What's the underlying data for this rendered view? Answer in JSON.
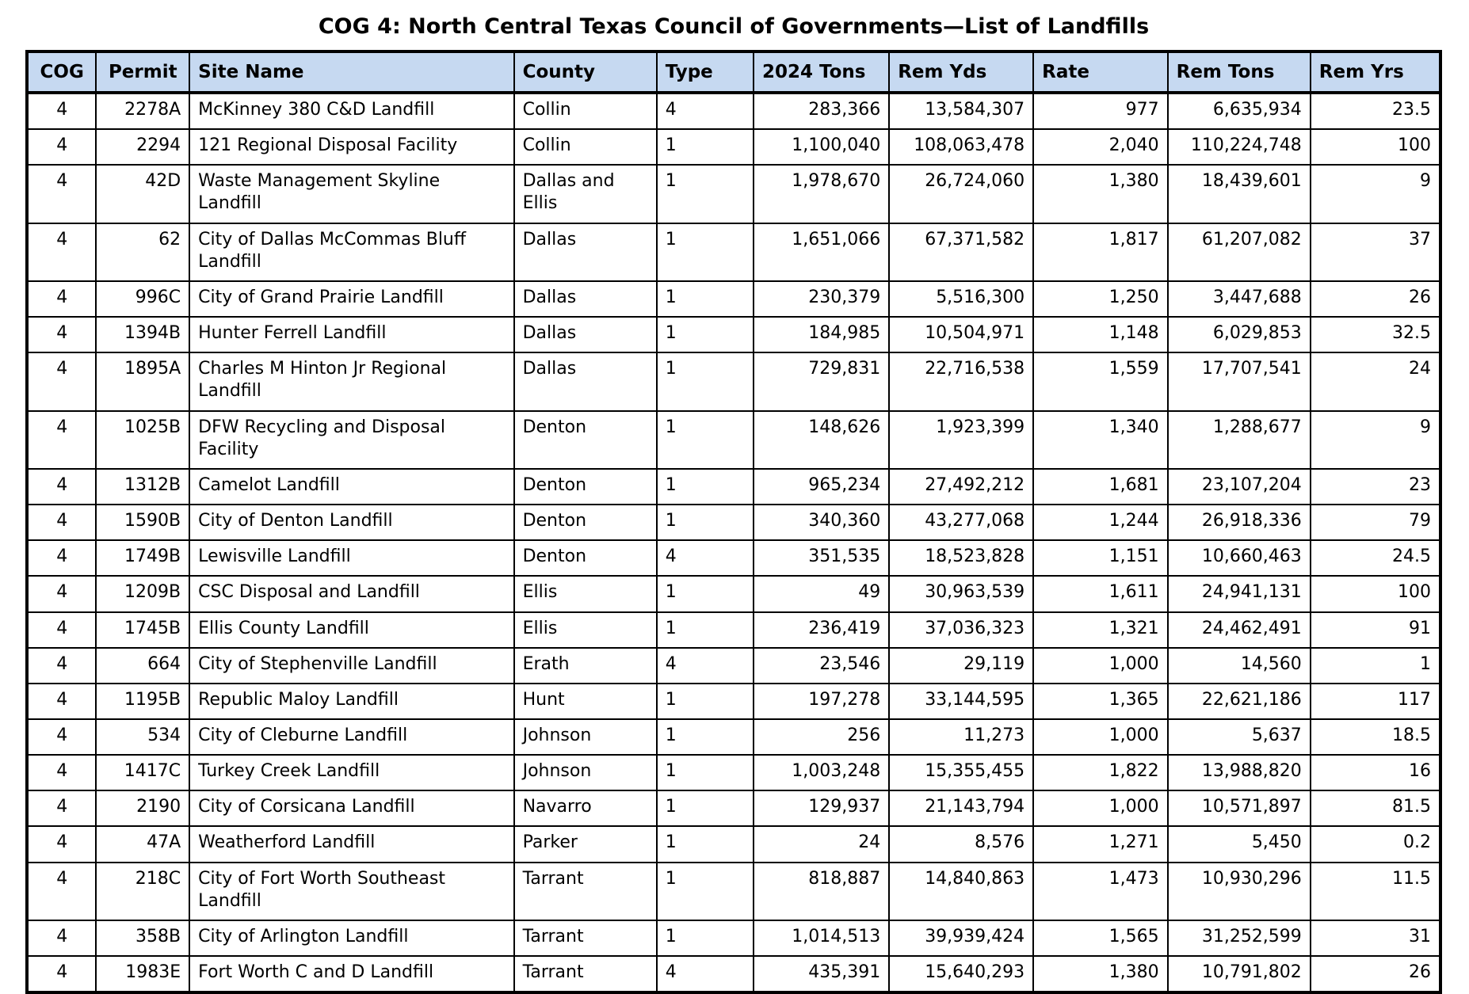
{
  "page": {
    "title": "COG 4: North Central Texas Council of Governments—List of Landfills"
  },
  "colors": {
    "header_bg": "#c6d9f1",
    "border": "#000000",
    "text": "#000000",
    "page_bg": "#ffffff"
  },
  "table": {
    "columns": [
      {
        "key": "cog",
        "label": "COG"
      },
      {
        "key": "permit",
        "label": "Permit"
      },
      {
        "key": "site_name",
        "label": "Site Name"
      },
      {
        "key": "county",
        "label": "County"
      },
      {
        "key": "type",
        "label": "Type"
      },
      {
        "key": "tons_2024",
        "label": "2024 Tons"
      },
      {
        "key": "rem_yds",
        "label": "Rem Yds"
      },
      {
        "key": "rate",
        "label": "Rate"
      },
      {
        "key": "rem_tons",
        "label": "Rem Tons"
      },
      {
        "key": "rem_yrs",
        "label": "Rem Yrs"
      }
    ],
    "rows": [
      {
        "cog": "4",
        "permit": "2278A",
        "site_name": "McKinney 380 C&D Landfill",
        "county": "Collin",
        "type": "4",
        "tons_2024": "283,366",
        "rem_yds": "13,584,307",
        "rate": "977",
        "rem_tons": "6,635,934",
        "rem_yrs": "23.5"
      },
      {
        "cog": "4",
        "permit": "2294",
        "site_name": "121 Regional Disposal Facility",
        "county": "Collin",
        "type": "1",
        "tons_2024": "1,100,040",
        "rem_yds": "108,063,478",
        "rate": "2,040",
        "rem_tons": "110,224,748",
        "rem_yrs": "100"
      },
      {
        "cog": "4",
        "permit": "42D",
        "site_name": "Waste Management Skyline Landfill",
        "county": "Dallas and Ellis",
        "type": "1",
        "tons_2024": "1,978,670",
        "rem_yds": "26,724,060",
        "rate": "1,380",
        "rem_tons": "18,439,601",
        "rem_yrs": "9"
      },
      {
        "cog": "4",
        "permit": "62",
        "site_name": "City of Dallas McCommas Bluff Landfill",
        "county": "Dallas",
        "type": "1",
        "tons_2024": "1,651,066",
        "rem_yds": "67,371,582",
        "rate": "1,817",
        "rem_tons": "61,207,082",
        "rem_yrs": "37"
      },
      {
        "cog": "4",
        "permit": "996C",
        "site_name": "City of Grand Prairie Landfill",
        "county": "Dallas",
        "type": "1",
        "tons_2024": "230,379",
        "rem_yds": "5,516,300",
        "rate": "1,250",
        "rem_tons": "3,447,688",
        "rem_yrs": "26"
      },
      {
        "cog": "4",
        "permit": "1394B",
        "site_name": "Hunter Ferrell Landfill",
        "county": "Dallas",
        "type": "1",
        "tons_2024": "184,985",
        "rem_yds": "10,504,971",
        "rate": "1,148",
        "rem_tons": "6,029,853",
        "rem_yrs": "32.5"
      },
      {
        "cog": "4",
        "permit": "1895A",
        "site_name": "Charles M Hinton Jr Regional Landfill",
        "county": "Dallas",
        "type": "1",
        "tons_2024": "729,831",
        "rem_yds": "22,716,538",
        "rate": "1,559",
        "rem_tons": "17,707,541",
        "rem_yrs": "24"
      },
      {
        "cog": "4",
        "permit": "1025B",
        "site_name": "DFW Recycling and Disposal Facility",
        "county": "Denton",
        "type": "1",
        "tons_2024": "148,626",
        "rem_yds": "1,923,399",
        "rate": "1,340",
        "rem_tons": "1,288,677",
        "rem_yrs": "9"
      },
      {
        "cog": "4",
        "permit": "1312B",
        "site_name": "Camelot Landfill",
        "county": "Denton",
        "type": "1",
        "tons_2024": "965,234",
        "rem_yds": "27,492,212",
        "rate": "1,681",
        "rem_tons": "23,107,204",
        "rem_yrs": "23"
      },
      {
        "cog": "4",
        "permit": "1590B",
        "site_name": "City of Denton Landfill",
        "county": "Denton",
        "type": "1",
        "tons_2024": "340,360",
        "rem_yds": "43,277,068",
        "rate": "1,244",
        "rem_tons": "26,918,336",
        "rem_yrs": "79"
      },
      {
        "cog": "4",
        "permit": "1749B",
        "site_name": "Lewisville Landfill",
        "county": "Denton",
        "type": "4",
        "tons_2024": "351,535",
        "rem_yds": "18,523,828",
        "rate": "1,151",
        "rem_tons": "10,660,463",
        "rem_yrs": "24.5"
      },
      {
        "cog": "4",
        "permit": "1209B",
        "site_name": "CSC Disposal and Landfill",
        "county": "Ellis",
        "type": "1",
        "tons_2024": "49",
        "rem_yds": "30,963,539",
        "rate": "1,611",
        "rem_tons": "24,941,131",
        "rem_yrs": "100"
      },
      {
        "cog": "4",
        "permit": "1745B",
        "site_name": "Ellis County Landfill",
        "county": "Ellis",
        "type": "1",
        "tons_2024": "236,419",
        "rem_yds": "37,036,323",
        "rate": "1,321",
        "rem_tons": "24,462,491",
        "rem_yrs": "91"
      },
      {
        "cog": "4",
        "permit": "664",
        "site_name": "City of Stephenville Landfill",
        "county": "Erath",
        "type": "4",
        "tons_2024": "23,546",
        "rem_yds": "29,119",
        "rate": "1,000",
        "rem_tons": "14,560",
        "rem_yrs": "1"
      },
      {
        "cog": "4",
        "permit": "1195B",
        "site_name": "Republic Maloy Landfill",
        "county": "Hunt",
        "type": "1",
        "tons_2024": "197,278",
        "rem_yds": "33,144,595",
        "rate": "1,365",
        "rem_tons": "22,621,186",
        "rem_yrs": "117"
      },
      {
        "cog": "4",
        "permit": "534",
        "site_name": "City of Cleburne Landfill",
        "county": "Johnson",
        "type": "1",
        "tons_2024": "256",
        "rem_yds": "11,273",
        "rate": "1,000",
        "rem_tons": "5,637",
        "rem_yrs": "18.5"
      },
      {
        "cog": "4",
        "permit": "1417C",
        "site_name": "Turkey Creek Landfill",
        "county": "Johnson",
        "type": "1",
        "tons_2024": "1,003,248",
        "rem_yds": "15,355,455",
        "rate": "1,822",
        "rem_tons": "13,988,820",
        "rem_yrs": "16"
      },
      {
        "cog": "4",
        "permit": "2190",
        "site_name": "City of Corsicana Landfill",
        "county": "Navarro",
        "type": "1",
        "tons_2024": "129,937",
        "rem_yds": "21,143,794",
        "rate": "1,000",
        "rem_tons": "10,571,897",
        "rem_yrs": "81.5"
      },
      {
        "cog": "4",
        "permit": "47A",
        "site_name": "Weatherford Landfill",
        "county": "Parker",
        "type": "1",
        "tons_2024": "24",
        "rem_yds": "8,576",
        "rate": "1,271",
        "rem_tons": "5,450",
        "rem_yrs": "0.2"
      },
      {
        "cog": "4",
        "permit": "218C",
        "site_name": "City of Fort Worth Southeast Landfill",
        "county": "Tarrant",
        "type": "1",
        "tons_2024": "818,887",
        "rem_yds": "14,840,863",
        "rate": "1,473",
        "rem_tons": "10,930,296",
        "rem_yrs": "11.5"
      },
      {
        "cog": "4",
        "permit": "358B",
        "site_name": "City of Arlington Landfill",
        "county": "Tarrant",
        "type": "1",
        "tons_2024": "1,014,513",
        "rem_yds": "39,939,424",
        "rate": "1,565",
        "rem_tons": "31,252,599",
        "rem_yrs": "31"
      },
      {
        "cog": "4",
        "permit": "1983E",
        "site_name": "Fort Worth C and D Landfill",
        "county": "Tarrant",
        "type": "4",
        "tons_2024": "435,391",
        "rem_yds": "15,640,293",
        "rate": "1,380",
        "rem_tons": "10,791,802",
        "rem_yrs": "26"
      }
    ]
  }
}
